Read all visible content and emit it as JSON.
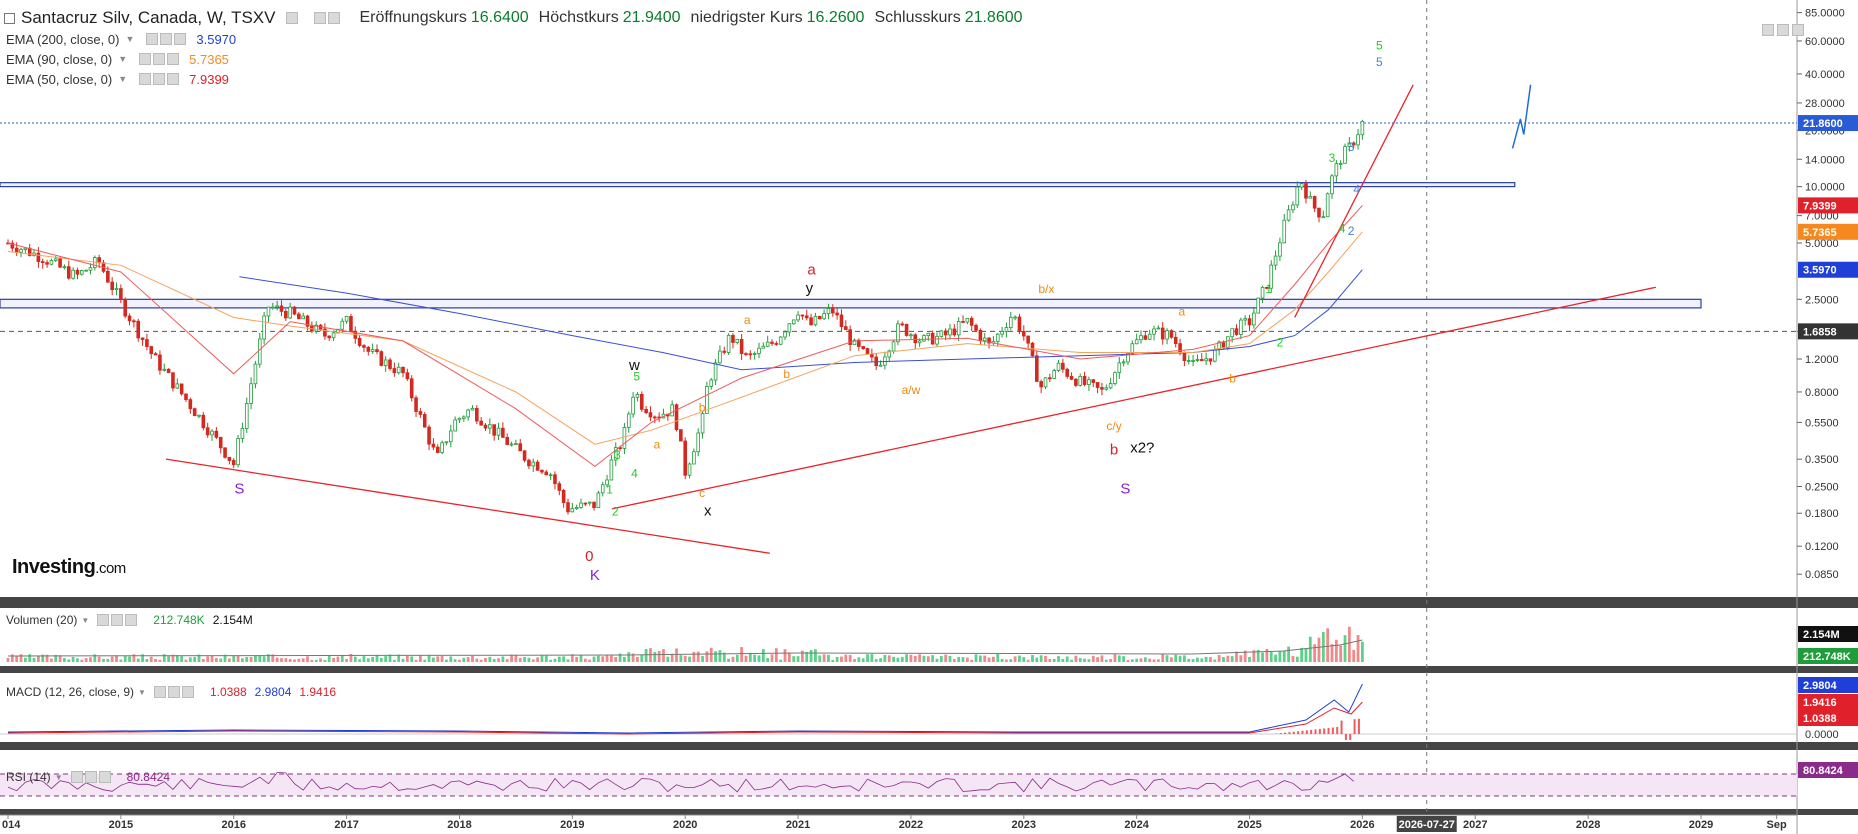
{
  "header": {
    "title": "Santacruz Silv, Canada, W, TSXV",
    "open_label": "Eröffnungskurs",
    "open": "16.6400",
    "high_label": "Höchstkurs",
    "high": "21.9400",
    "low_label": "niedrigster Kurs",
    "low": "16.2600",
    "close_label": "Schlusskurs",
    "close": "21.8600"
  },
  "indicators": [
    {
      "label": "EMA (200, close, 0)",
      "value": "3.5970",
      "color": "#1f3fd6"
    },
    {
      "label": "EMA (90, close, 0)",
      "value": "5.7365",
      "color": "#f5891f"
    },
    {
      "label": "EMA (50, close, 0)",
      "value": "7.9399",
      "color": "#e0202a"
    }
  ],
  "logo": {
    "brand": "Investing",
    "suffix": ".com"
  },
  "colors": {
    "up_candle": "#1f9d3a",
    "down_candle": "#d4291f",
    "ema200": "#3b4fd6",
    "ema90": "#f5a35b",
    "ema50": "#ef5a5a",
    "trendline": "#e8242a",
    "wave_green": "#22cc22",
    "wave_orange": "#f08a10",
    "wave_purple": "#8a1fd6",
    "volume_up": "#5cd18a",
    "volume_down": "#f08a8a",
    "rsi": "#8a2a8a",
    "macd_line": "#1f3fd6",
    "macd_signal": "#e0202a",
    "projection": "#1f6fd6",
    "separator": "#454545"
  },
  "chart_data": [
    {
      "type": "line",
      "title": "Santacruz Silv, Canada, W, TSXV",
      "scale": "log",
      "ylim": [
        0.07,
        90
      ],
      "y_ticks": [
        "85.0000",
        "60.0000",
        "40.0000",
        "28.0000",
        "20.0000",
        "14.0000",
        "10.0000",
        "7.0000",
        "5.0000",
        "2.5000",
        "1.6858",
        "1.2000",
        "0.8000",
        "0.5500",
        "0.3500",
        "0.2500",
        "0.1800",
        "0.1200",
        "0.0850"
      ],
      "x_ticks": [
        "014",
        "2015",
        "2016",
        "2017",
        "2018",
        "2019",
        "2020",
        "2021",
        "2022",
        "2023",
        "2024",
        "2025",
        "2026",
        "2026-07-27",
        "2027",
        "2028",
        "2029",
        "Sep"
      ],
      "price_labels": [
        {
          "text": "21.8600",
          "bg": "#2a5bd7"
        },
        {
          "text": "7.9399",
          "bg": "#e0202a"
        },
        {
          "text": "5.7365",
          "bg": "#f5891f"
        },
        {
          "text": "3.5970",
          "bg": "#1f3fd6"
        },
        {
          "text": "1.6858",
          "bg": "#333333"
        }
      ],
      "series": [
        {
          "name": "Santacruz Silv",
          "x": [
            2014.0,
            2014.3,
            2014.6,
            2014.8,
            2015.0,
            2015.3,
            2015.6,
            2015.9,
            2016.0,
            2016.2,
            2016.3,
            2016.5,
            2016.8,
            2017.0,
            2017.2,
            2017.5,
            2017.8,
            2017.95,
            2018.1,
            2018.3,
            2018.6,
            2018.8,
            2018.95,
            2019.2,
            2019.35,
            2019.45,
            2019.55,
            2019.6,
            2019.75,
            2019.9,
            2020.0,
            2020.15,
            2020.2,
            2020.4,
            2020.55,
            2020.8,
            2021.0,
            2021.1,
            2021.3,
            2021.5,
            2021.7,
            2021.9,
            2022.1,
            2022.3,
            2022.5,
            2022.7,
            2022.9,
            2023.0,
            2023.15,
            2023.3,
            2023.5,
            2023.7,
            2023.9,
            2024.1,
            2024.3,
            2024.5,
            2024.7,
            2024.85,
            2025.0,
            2025.15,
            2025.3,
            2025.45,
            2025.55,
            2025.65,
            2025.7,
            2025.8,
            2025.9,
            2026.0
          ],
          "values": [
            5.0,
            4.2,
            3.3,
            4.0,
            2.4,
            1.2,
            0.7,
            0.4,
            0.33,
            1.2,
            2.3,
            2.1,
            1.6,
            1.9,
            1.3,
            1.0,
            0.35,
            0.55,
            0.65,
            0.5,
            0.35,
            0.3,
            0.19,
            0.2,
            0.34,
            0.45,
            0.85,
            0.7,
            0.6,
            0.65,
            0.3,
            0.55,
            0.9,
            1.6,
            1.2,
            1.5,
            2.2,
            1.8,
            2.2,
            1.4,
            1.1,
            1.8,
            1.5,
            1.6,
            1.9,
            1.4,
            2.1,
            1.6,
            0.85,
            1.1,
            0.9,
            0.8,
            1.3,
            1.7,
            1.6,
            1.1,
            1.3,
            1.7,
            1.9,
            3.0,
            6.0,
            11.0,
            8.0,
            7.0,
            10.0,
            14.0,
            16.6,
            21.86
          ]
        },
        {
          "name": "EMA (200, close, 0)",
          "x": [
            2016.05,
            2017.0,
            2018.0,
            2019.0,
            2019.8,
            2020.5,
            2021.5,
            2022.5,
            2023.5,
            2024.5,
            2025.0,
            2025.4,
            2025.7,
            2026.0
          ],
          "values": [
            3.3,
            2.7,
            2.1,
            1.6,
            1.3,
            1.05,
            1.15,
            1.2,
            1.25,
            1.3,
            1.4,
            1.6,
            2.2,
            3.6
          ]
        },
        {
          "name": "EMA (90, close, 0)",
          "x": [
            2014.0,
            2015.0,
            2016.0,
            2016.5,
            2017.5,
            2018.5,
            2019.2,
            2019.7,
            2020.5,
            2021.5,
            2022.5,
            2023.5,
            2024.5,
            2025.0,
            2025.4,
            2025.7,
            2026.0
          ],
          "values": [
            4.5,
            3.8,
            2.0,
            1.8,
            1.5,
            0.8,
            0.42,
            0.5,
            0.75,
            1.25,
            1.45,
            1.3,
            1.3,
            1.45,
            2.2,
            3.5,
            5.74
          ]
        },
        {
          "name": "EMA (50, close, 0)",
          "x": [
            2014.0,
            2015.0,
            2016.0,
            2016.5,
            2017.5,
            2018.5,
            2019.2,
            2019.7,
            2020.5,
            2021.5,
            2022.5,
            2023.5,
            2024.5,
            2025.0,
            2025.4,
            2025.7,
            2026.0
          ],
          "values": [
            5.0,
            3.5,
            1.0,
            1.9,
            1.5,
            0.65,
            0.32,
            0.55,
            0.95,
            1.5,
            1.55,
            1.2,
            1.35,
            1.6,
            3.0,
            5.0,
            7.94
          ]
        }
      ],
      "annotations": [
        {
          "text": "5",
          "x": 2026.15,
          "y": 54,
          "color": "#22cc22"
        },
        {
          "text": "5",
          "x": 2026.15,
          "y": 44,
          "color": "#4a7fd6"
        },
        {
          "text": "3",
          "x": 2025.73,
          "y": 13.5,
          "color": "#22cc22"
        },
        {
          "text": "3",
          "x": 2025.9,
          "y": 15.5,
          "color": "#4a7fd6"
        },
        {
          "text": "4",
          "x": 2025.95,
          "y": 9.2,
          "color": "#4a7fd6"
        },
        {
          "text": "2",
          "x": 2025.9,
          "y": 5.5,
          "color": "#4a7fd6"
        },
        {
          "text": "4",
          "x": 2025.82,
          "y": 5.7,
          "color": "#22cc22"
        },
        {
          "text": "1",
          "x": 2025.17,
          "y": 2.7,
          "color": "#22cc22"
        },
        {
          "text": "2",
          "x": 2025.27,
          "y": 1.4,
          "color": "#22cc22"
        },
        {
          "text": "a",
          "x": 2021.12,
          "y": 3.4,
          "color": "#d4202a"
        },
        {
          "text": "y",
          "x": 2021.1,
          "y": 2.7,
          "color": "#111111"
        },
        {
          "text": "b/x",
          "x": 2023.2,
          "y": 2.7,
          "color": "#f08a10"
        },
        {
          "text": "a",
          "x": 2024.4,
          "y": 2.05,
          "color": "#f08a10"
        },
        {
          "text": "b",
          "x": 2024.85,
          "y": 0.9,
          "color": "#f08a10"
        },
        {
          "text": "a/w",
          "x": 2022.0,
          "y": 0.78,
          "color": "#f08a10"
        },
        {
          "text": "c/y",
          "x": 2023.8,
          "y": 0.5,
          "color": "#f08a10"
        },
        {
          "text": "b",
          "x": 2023.8,
          "y": 0.37,
          "color": "#d4202a"
        },
        {
          "text": "x2?",
          "x": 2024.05,
          "y": 0.38,
          "color": "#111111"
        },
        {
          "text": "S",
          "x": 2023.9,
          "y": 0.23,
          "color": "#8a1fd6"
        },
        {
          "text": "S",
          "x": 2016.05,
          "y": 0.23,
          "color": "#8a1fd6"
        },
        {
          "text": "w",
          "x": 2019.55,
          "y": 1.05,
          "color": "#111111"
        },
        {
          "text": "5",
          "x": 2019.57,
          "y": 0.92,
          "color": "#22cc22"
        },
        {
          "text": "b",
          "x": 2020.15,
          "y": 0.63,
          "color": "#f08a10"
        },
        {
          "text": "a",
          "x": 2019.75,
          "y": 0.4,
          "color": "#f08a10"
        },
        {
          "text": "3",
          "x": 2019.4,
          "y": 0.35,
          "color": "#22cc22"
        },
        {
          "text": "4",
          "x": 2019.55,
          "y": 0.28,
          "color": "#22cc22"
        },
        {
          "text": "1",
          "x": 2019.33,
          "y": 0.23,
          "color": "#22cc22"
        },
        {
          "text": "2",
          "x": 2019.38,
          "y": 0.175,
          "color": "#22cc22"
        },
        {
          "text": "c",
          "x": 2020.15,
          "y": 0.22,
          "color": "#f08a10"
        },
        {
          "text": "x",
          "x": 2020.2,
          "y": 0.175,
          "color": "#111111"
        },
        {
          "text": "a",
          "x": 2020.55,
          "y": 1.85,
          "color": "#f08a10"
        },
        {
          "text": "b",
          "x": 2020.9,
          "y": 0.95,
          "color": "#f08a10"
        },
        {
          "text": "0",
          "x": 2019.15,
          "y": 0.1,
          "color": "#d4202a"
        },
        {
          "text": "K",
          "x": 2019.2,
          "y": 0.079,
          "color": "#8a1fd6"
        }
      ]
    },
    {
      "type": "bar",
      "title": "Volumen (20)",
      "values_labels": [
        "212.748K",
        "2.154M"
      ]
    },
    {
      "type": "line",
      "title": "MACD (12, 26, close, 9)",
      "values_labels": [
        "1.0388",
        "2.9804",
        "1.9416"
      ],
      "y_ticks": [
        "0.0000"
      ]
    },
    {
      "type": "line",
      "title": "RSI (14)",
      "values_labels": [
        "80.8424"
      ]
    }
  ]
}
